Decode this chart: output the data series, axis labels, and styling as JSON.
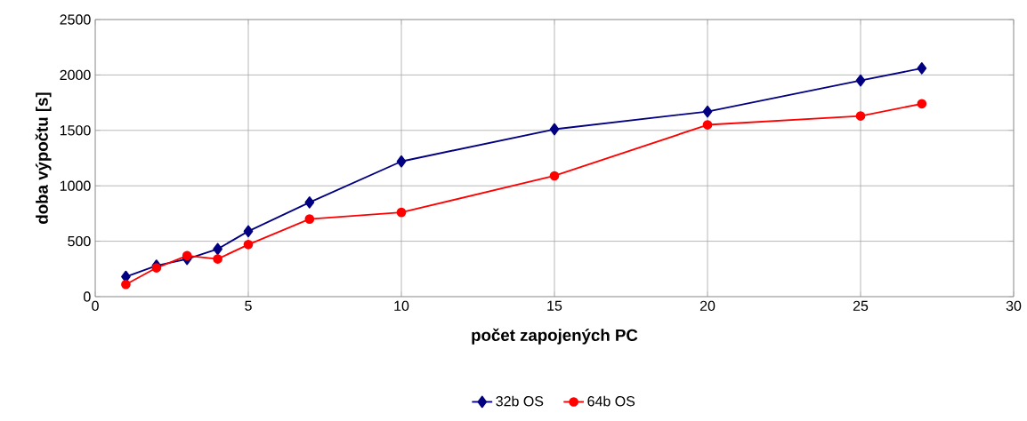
{
  "chart_data": {
    "type": "line",
    "xlabel": "počet zapojených PC",
    "ylabel": "doba výpočtu [s]",
    "x": [
      1,
      2,
      3,
      4,
      5,
      7,
      10,
      15,
      20,
      25,
      27
    ],
    "series": [
      {
        "name": "32b OS",
        "color": "#000080",
        "marker": "diamond",
        "values": [
          180,
          280,
          340,
          430,
          590,
          850,
          1220,
          1510,
          1670,
          1950,
          2060
        ]
      },
      {
        "name": "64b OS",
        "color": "#ff0000",
        "marker": "circle",
        "values": [
          110,
          260,
          370,
          340,
          470,
          700,
          760,
          1090,
          1550,
          1630,
          1740
        ]
      }
    ],
    "xlim": [
      0,
      30
    ],
    "xticks": [
      0,
      5,
      10,
      15,
      20,
      25,
      30
    ],
    "ylim": [
      0,
      2500
    ],
    "yticks": [
      0,
      500,
      1000,
      1500,
      2000,
      2500
    ],
    "grid": true,
    "legend": "bottom",
    "line_style": "solid"
  }
}
